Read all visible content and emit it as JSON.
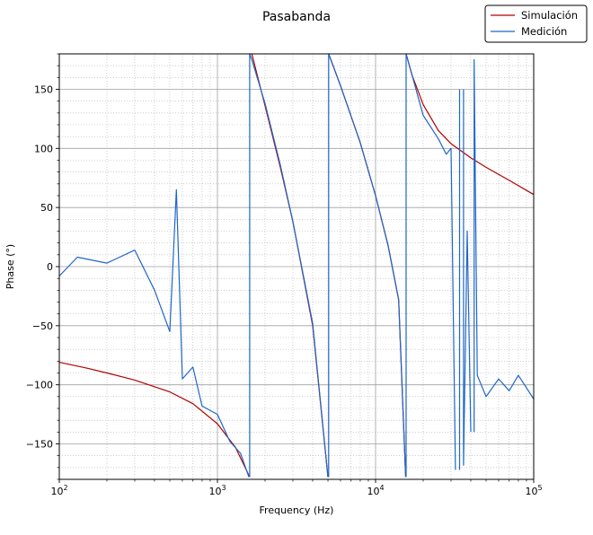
{
  "chart_data": {
    "type": "line",
    "title": "Pasabanda",
    "xlabel": "Frequency (Hz)",
    "ylabel": "Phase (°)",
    "xscale": "log",
    "xlim": [
      100,
      100000
    ],
    "ylim": [
      -180,
      180
    ],
    "x_ticks": [
      100,
      1000,
      10000,
      100000
    ],
    "x_tick_labels": [
      {
        "base": "10",
        "exp": "2"
      },
      {
        "base": "10",
        "exp": "3"
      },
      {
        "base": "10",
        "exp": "4"
      },
      {
        "base": "10",
        "exp": "5"
      }
    ],
    "y_ticks": [
      -150,
      -100,
      -50,
      0,
      50,
      100,
      150
    ],
    "y_tick_labels": [
      "−150",
      "−100",
      "−50",
      "0",
      "50",
      "100",
      "150"
    ],
    "grid": true,
    "minor_grid": true,
    "legend_position": "top-right, outside plot",
    "series": [
      {
        "name": "Simulación",
        "color": "#b00000",
        "x": [
          100,
          150,
          200,
          300,
          500,
          700,
          1000,
          1300,
          1600,
          1650,
          2000,
          2500,
          3000,
          4000,
          5000,
          5050,
          6000,
          8000,
          10000,
          12000,
          14000,
          15500,
          15600,
          17000,
          20000,
          25000,
          30000,
          40000,
          50000,
          70000,
          100000
        ],
        "y": [
          -81,
          -86,
          -90,
          -96,
          -106,
          -116,
          -133,
          -153,
          -178,
          180,
          136,
          84,
          38,
          -50,
          -178,
          180,
          153,
          105,
          60,
          18,
          -28,
          -178,
          180,
          162,
          137,
          115,
          104,
          92,
          84,
          73,
          61
        ]
      },
      {
        "name": "Medición",
        "color": "#1f66c8",
        "x": [
          100,
          130,
          200,
          300,
          400,
          500,
          550,
          600,
          700,
          800,
          1000,
          1200,
          1400,
          1580,
          1600,
          1650,
          2000,
          2500,
          3000,
          4000,
          5000,
          5050,
          6000,
          8000,
          10000,
          12000,
          14000,
          15500,
          15600,
          17000,
          20000,
          25000,
          28000,
          30000,
          32000,
          34000,
          36000,
          38000,
          40000,
          42000,
          44000,
          50000,
          60000,
          70000,
          80000,
          100000
        ],
        "y": [
          -8,
          8,
          3,
          14,
          -20,
          -55,
          65,
          -95,
          -85,
          -118,
          -125,
          -148,
          -158,
          -178,
          180,
          175,
          138,
          86,
          38,
          -48,
          -178,
          180,
          153,
          105,
          60,
          18,
          -28,
          -178,
          180,
          162,
          128,
          108,
          95,
          100,
          -172,
          150,
          -168,
          30,
          -140,
          175,
          -92,
          -110,
          -95,
          -105,
          -92,
          -112
        ]
      }
    ]
  }
}
